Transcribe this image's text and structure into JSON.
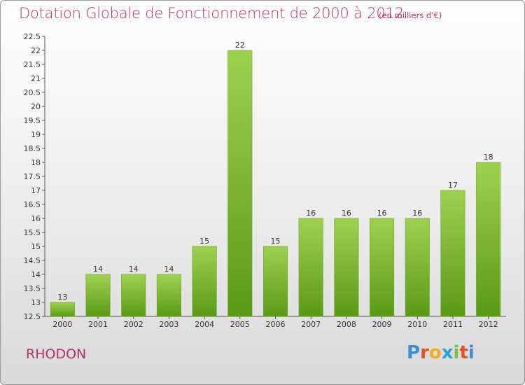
{
  "title": "Dotation Globale de Fonctionnement de 2000 à 2012",
  "subtitle": "(en milliers d'€)",
  "commune": "RHODON",
  "logo": {
    "letters": [
      "P",
      "r",
      "o",
      "x",
      "i",
      "t",
      "i"
    ],
    "colors": [
      "#3a8fd1",
      "#e94e2a",
      "#f7a823",
      "#2aa0d8",
      "#7cbf3a",
      "#e94e2a",
      "#3a8fd1"
    ]
  },
  "chart_data": {
    "type": "bar",
    "categories": [
      "2000",
      "2001",
      "2002",
      "2003",
      "2004",
      "2005",
      "2006",
      "2007",
      "2008",
      "2009",
      "2010",
      "2011",
      "2012"
    ],
    "values": [
      13,
      14,
      14,
      14,
      15,
      22,
      15,
      16,
      16,
      16,
      16,
      17,
      18
    ],
    "data_labels": [
      "13",
      "14",
      "14",
      "14",
      "15",
      "22",
      "15",
      "16",
      "16",
      "16",
      "16",
      "17",
      "18"
    ],
    "yticks": [
      "12.5",
      "13",
      "13.5",
      "14",
      "14.5",
      "15",
      "15.5",
      "16",
      "16.5",
      "17",
      "17.5",
      "18",
      "18.5",
      "19",
      "19.5",
      "20",
      "20.5",
      "21",
      "21.5",
      "22",
      "22.5"
    ],
    "ylim": [
      12.5,
      22.5
    ],
    "grid": false,
    "colors": {
      "bar_light": "#9fd14f",
      "bar_dark": "#5a9a16",
      "axis": "#555555",
      "text": "#333333"
    }
  }
}
